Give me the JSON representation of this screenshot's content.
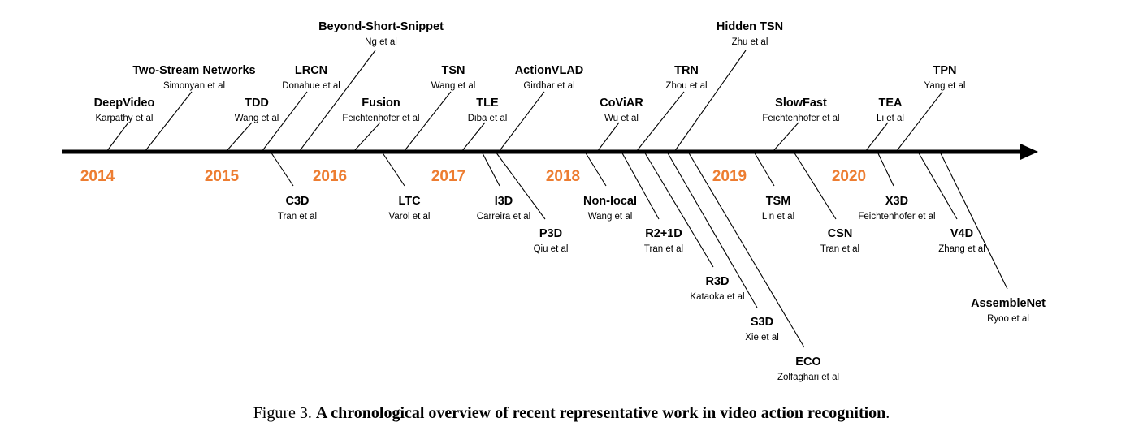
{
  "colors": {
    "year": "#ED7D31",
    "line": "#000000"
  },
  "years": [
    "2014",
    "2015",
    "2016",
    "2017",
    "2018",
    "2019",
    "2020"
  ],
  "works": [
    {
      "name": "DeepVideo",
      "authors": "Karpathy et al"
    },
    {
      "name": "Two-Stream Networks",
      "authors": "Simonyan et al"
    },
    {
      "name": "TDD",
      "authors": "Wang et al"
    },
    {
      "name": "LRCN",
      "authors": "Donahue et al"
    },
    {
      "name": "Beyond-Short-Snippet",
      "authors": "Ng et al"
    },
    {
      "name": "Fusion",
      "authors": "Feichtenhofer et al"
    },
    {
      "name": "TSN",
      "authors": "Wang et al"
    },
    {
      "name": "TLE",
      "authors": "Diba et al"
    },
    {
      "name": "ActionVLAD",
      "authors": "Girdhar et al"
    },
    {
      "name": "CoViAR",
      "authors": "Wu et al"
    },
    {
      "name": "TRN",
      "authors": "Zhou et al"
    },
    {
      "name": "Hidden TSN",
      "authors": "Zhu et al"
    },
    {
      "name": "SlowFast",
      "authors": "Feichtenhofer et al"
    },
    {
      "name": "TEA",
      "authors": "Li et al"
    },
    {
      "name": "TPN",
      "authors": "Yang et al"
    },
    {
      "name": "C3D",
      "authors": "Tran et al"
    },
    {
      "name": "LTC",
      "authors": "Varol et al"
    },
    {
      "name": "I3D",
      "authors": "Carreira et al"
    },
    {
      "name": "P3D",
      "authors": "Qiu et al"
    },
    {
      "name": "Non-local",
      "authors": "Wang et al"
    },
    {
      "name": "R2+1D",
      "authors": "Tran et al"
    },
    {
      "name": "R3D",
      "authors": "Kataoka et al"
    },
    {
      "name": "S3D",
      "authors": "Xie et al"
    },
    {
      "name": "ECO",
      "authors": "Zolfaghari et al"
    },
    {
      "name": "TSM",
      "authors": "Lin et al"
    },
    {
      "name": "CSN",
      "authors": "Tran et al"
    },
    {
      "name": "X3D",
      "authors": "Feichtenhofer et al"
    },
    {
      "name": "V4D",
      "authors": "Zhang et al"
    },
    {
      "name": "AssembleNet",
      "authors": "Ryoo et al"
    }
  ],
  "caption": {
    "prefix": "Figure 3. ",
    "bold": "A chronological overview of recent representative work in video action recognition",
    "suffix": "."
  }
}
